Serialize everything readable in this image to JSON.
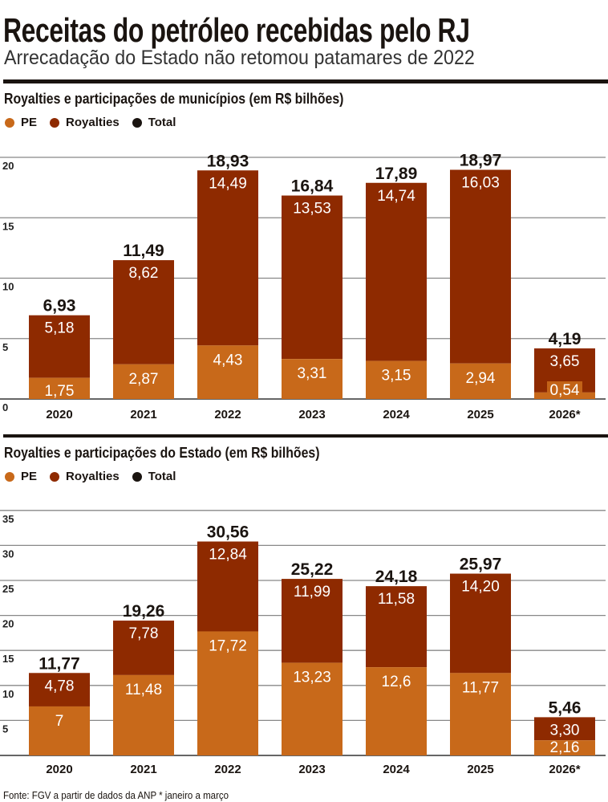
{
  "header": {
    "title": "Receitas do petróleo recebidas pelo RJ",
    "subtitle": "Arrecadação do Estado não retomou patamares de 2022"
  },
  "colors": {
    "pe": "#c8691a",
    "royalties": "#8e2a00",
    "total": "#1a1410",
    "grid": "#888888"
  },
  "legend": [
    "PE",
    "Royalties",
    "Total"
  ],
  "footer": "Fonte: FGV a partir de dados da ANP * janeiro a março",
  "chart_data": [
    {
      "type": "bar",
      "stacked": true,
      "title": "Royalties e participações de municípios (em R$ bilhões)",
      "categories": [
        "2020",
        "2021",
        "2022",
        "2023",
        "2024",
        "2025",
        "2026*"
      ],
      "series": [
        {
          "name": "PE",
          "values": [
            1.75,
            2.87,
            4.43,
            3.31,
            3.15,
            2.94,
            0.54
          ],
          "labels": [
            "1,75",
            "2,87",
            "4,43",
            "3,31",
            "3,15",
            "2,94",
            "0,54"
          ]
        },
        {
          "name": "Royalties",
          "values": [
            5.18,
            8.62,
            14.49,
            13.53,
            14.74,
            16.03,
            3.65
          ],
          "labels": [
            "5,18",
            "8,62",
            "14,49",
            "13,53",
            "14,74",
            "16,03",
            "3,65"
          ]
        }
      ],
      "totals": [
        6.93,
        11.49,
        18.93,
        16.84,
        17.89,
        18.97,
        4.19
      ],
      "total_labels": [
        "6,93",
        "11,49",
        "18,93",
        "16,84",
        "17,89",
        "18,97",
        "4,19"
      ],
      "yticks": [
        "0",
        "5",
        "10",
        "15",
        "20"
      ],
      "ylim": [
        0,
        20
      ],
      "grid": true,
      "legend": "top-left"
    },
    {
      "type": "bar",
      "stacked": true,
      "title": "Royalties e participações do Estado (em R$ bilhões)",
      "categories": [
        "2020",
        "2021",
        "2022",
        "2023",
        "2024",
        "2025",
        "2026*"
      ],
      "series": [
        {
          "name": "PE",
          "values": [
            7,
            11.48,
            17.72,
            13.23,
            12.6,
            11.77,
            2.16
          ],
          "labels": [
            "7",
            "11,48",
            "17,72",
            "13,23",
            "12,6",
            "11,77",
            "2,16"
          ]
        },
        {
          "name": "Royalties",
          "values": [
            4.78,
            7.78,
            12.84,
            11.99,
            11.58,
            14.2,
            3.3
          ],
          "labels": [
            "4,78",
            "7,78",
            "12,84",
            "11,99",
            "11,58",
            "14,20",
            "3,30"
          ]
        }
      ],
      "totals": [
        11.77,
        19.26,
        30.56,
        25.22,
        24.18,
        25.97,
        5.46
      ],
      "total_labels": [
        "11,77",
        "19,26",
        "30,56",
        "25,22",
        "24,18",
        "25,97",
        "5,46"
      ],
      "yticks": [
        "",
        "5",
        "10",
        "15",
        "20",
        "25",
        "30",
        "35"
      ],
      "ylim": [
        0,
        35
      ],
      "grid": true,
      "legend": "top-left"
    }
  ]
}
